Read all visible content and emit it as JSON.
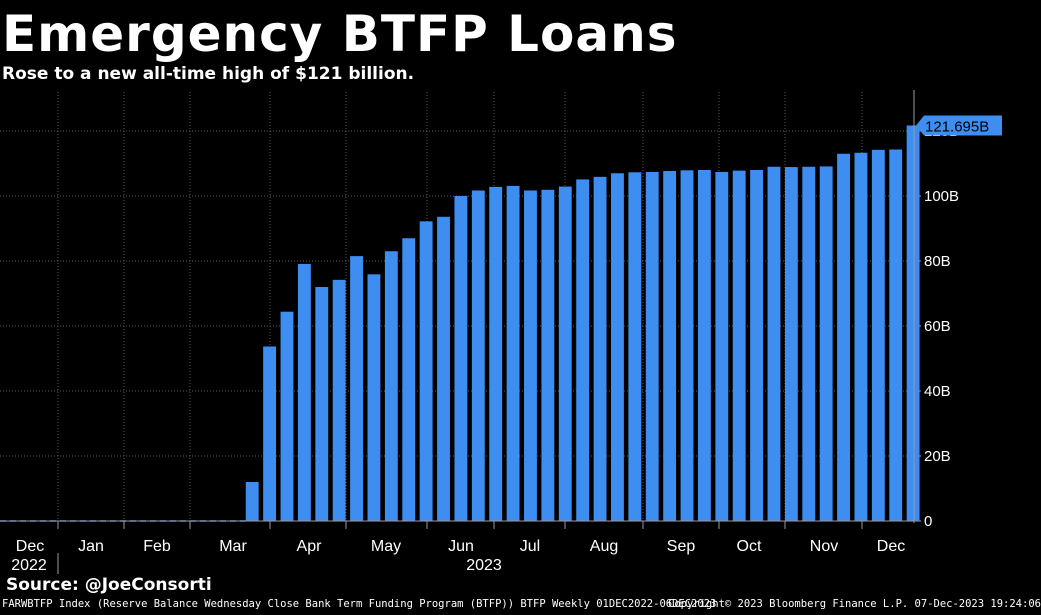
{
  "title": "Emergency BTFP Loans",
  "subtitle": "Rose to a new all-time high of $121 billion.",
  "source": "Source: @JoeConsorti",
  "footer_left": "FARWBTFP Index (Reserve Balance Wednesday Close Bank Term Funding Program (BTFP)) BTFP  Weekly 01DEC2022-06DEC2023",
  "footer_right": "Copyright© 2023 Bloomberg Finance L.P.  07-Dec-2023 19:24:06",
  "chart_data": {
    "type": "bar",
    "bar_color": "#3d8ef0",
    "last_value_label": "121.695B",
    "year_labels": [
      "2022",
      "2023"
    ],
    "x_tick_labels": [
      "Dec",
      "Jan",
      "Feb",
      "Mar",
      "Apr",
      "May",
      "Jun",
      "Jul",
      "Aug",
      "Sep",
      "Oct",
      "Nov",
      "Dec"
    ],
    "y_tick_labels": [
      "0",
      "20B",
      "40B",
      "60B",
      "80B",
      "100B",
      "120B"
    ],
    "ylim": [
      0,
      132
    ],
    "grid": true,
    "series": [
      {
        "values": [
          0,
          0,
          0,
          0,
          0,
          0,
          0,
          0,
          0,
          0,
          0,
          0,
          0,
          0,
          12,
          53.7,
          64.4,
          79.1,
          72.0,
          74.2,
          81.5,
          75.9,
          83.0,
          87.0,
          92.2,
          93.6,
          100.0,
          101.7,
          102.8,
          103.1,
          101.7,
          101.9,
          102.9,
          105.1,
          105.9,
          107.0,
          107.3,
          107.4,
          107.7,
          107.9,
          108.0,
          107.4,
          107.8,
          108.0,
          109.0,
          108.9,
          109.0,
          109.1,
          113.0,
          113.3,
          114.2,
          114.3,
          121.695
        ]
      }
    ]
  }
}
